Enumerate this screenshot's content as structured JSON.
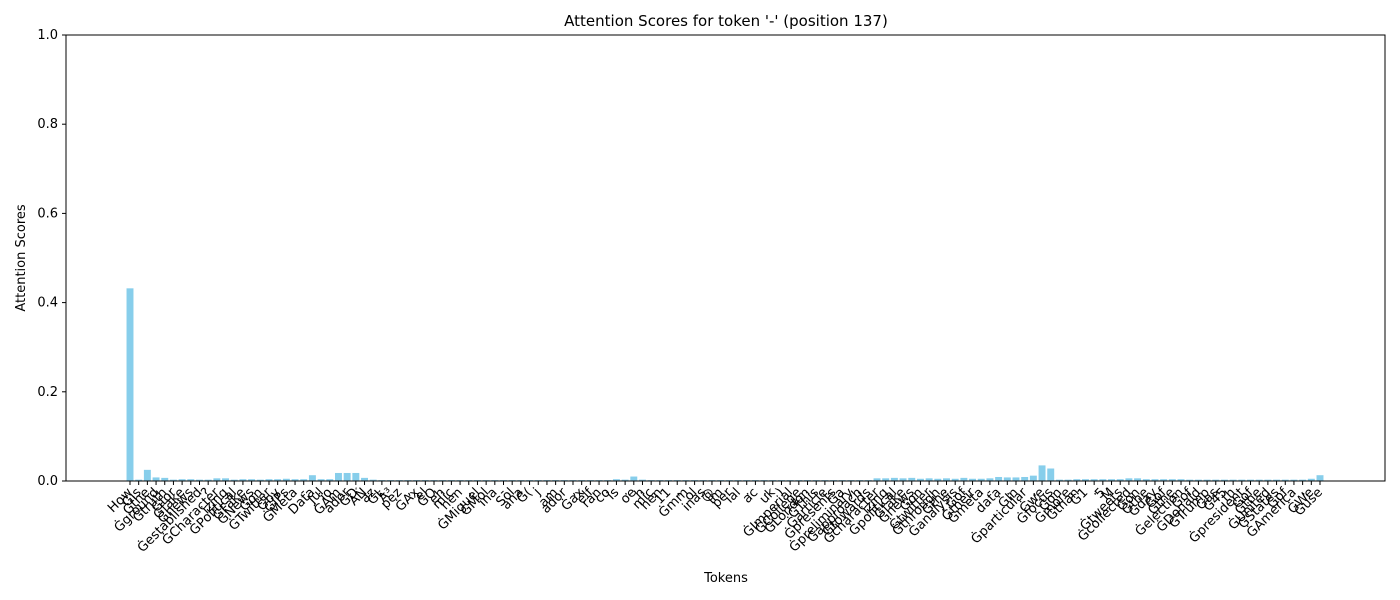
{
  "chart_data": {
    "type": "bar",
    "title": "Attention Scores for token '-' (position 137)",
    "x_label": "Tokens",
    "y_label": "Attention Scores",
    "color": "#87ceeb",
    "categories": [
      "How",
      "Ġis",
      "Ġthe",
      "Ġground",
      "Ġtruth",
      "Ġfor",
      "Ġfake",
      "Ġnews",
      "Ġestablished",
      "?",
      "ĠCharacter",
      "izing",
      "ĠPolitical",
      "ĠFake",
      "ĠNews",
      "Ġon",
      "ĠTwitter",
      "Ġby",
      "ĠIPs",
      "ĠMeta",
      "-",
      "Data",
      "Jul",
      "io",
      "ĠAm",
      "ador",
      "ĠD",
      "ÃŃ",
      "az",
      "ĠL",
      "Ã³",
      "pez",
      ",",
      "ĠAx",
      "el",
      "ĠO",
      "eh",
      "mic",
      "hen",
      ",",
      "ĠMiguel",
      "ĠMol",
      "ina",
      "-",
      "Sol",
      "ana",
      "Ġ(",
      "j",
      ".",
      "am",
      "ador",
      ",",
      "Ġax",
      "elf",
      "ran",
      "co",
      "is",
      ".",
      "oe",
      "h",
      "mic",
      "hen",
      "11",
      ",",
      "Ġmm",
      "ol",
      "inas",
      "@",
      "im",
      "per",
      "ial",
      ".",
      "ac",
      ".",
      "uk",
      ")",
      "ĠImperial",
      "ĠCollege",
      "ĠLondon",
      "ĠThis",
      "Ġarticle",
      "Ġpresents",
      "Ġa",
      "Ġpreliminary",
      "Ġapproach",
      "Ġtowards",
      "Ġcharacter",
      "izing",
      "Ġpolitical",
      "Ġfake",
      "Ġnews",
      "Ġon",
      "Ġtwitter",
      "Ġthrough",
      "Ġthe",
      "Ġanalysis",
      "Ġof",
      "Ġtheir",
      "Ġmeta",
      "-",
      "data",
      ".",
      "ĠIn",
      "Ġparticular",
      ",",
      "Ġwe",
      "Ġfocus",
      "Ġon",
      "Ġmore",
      "Ġthan",
      "Ġ1",
      ".",
      "5",
      "M",
      "Ġtweets",
      "Ġcollected",
      "Ġon",
      "Ġthe",
      "Ġday",
      "Ġof",
      "Ġthe",
      "Ġelection",
      "Ġof",
      "ĠDonald",
      "ĠTrump",
      "Ġas",
      "Ġ45",
      "th",
      "Ġpresident",
      "Ġof",
      "Ġthe",
      "ĠUnited",
      "ĠStates",
      "Ġof",
      "ĠAmerica",
      ".",
      "ĠWe",
      "Ġuse"
    ],
    "values": [
      0.432,
      0.003,
      0.025,
      0.008,
      0.007,
      0.003,
      0.004,
      0.004,
      0.003,
      0.003,
      0.006,
      0.006,
      0.003,
      0.004,
      0.004,
      0.003,
      0.004,
      0.004,
      0.005,
      0.004,
      0.004,
      0.013,
      0.004,
      0.004,
      0.018,
      0.018,
      0.018,
      0.007,
      0.003,
      0.002,
      0.002,
      0.002,
      0.002,
      0.002,
      0.002,
      0.002,
      0.002,
      0.002,
      0.002,
      0.002,
      0.002,
      0.002,
      0.002,
      0.002,
      0.002,
      0.002,
      0.002,
      0.002,
      0.002,
      0.002,
      0.002,
      0.002,
      0.002,
      0.002,
      0.002,
      0.002,
      0.004,
      0.003,
      0.01,
      0.003,
      0.002,
      0.002,
      0.002,
      0.002,
      0.002,
      0.002,
      0.002,
      0.002,
      0.002,
      0.002,
      0.002,
      0.002,
      0.002,
      0.002,
      0.002,
      0.002,
      0.002,
      0.002,
      0.002,
      0.002,
      0.002,
      0.002,
      0.002,
      0.002,
      0.002,
      0.002,
      0.006,
      0.006,
      0.007,
      0.006,
      0.007,
      0.005,
      0.006,
      0.005,
      0.006,
      0.005,
      0.007,
      0.005,
      0.005,
      0.006,
      0.009,
      0.008,
      0.008,
      0.009,
      0.012,
      0.035,
      0.028,
      0.003,
      0.003,
      0.004,
      0.004,
      0.004,
      0.004,
      0.004,
      0.004,
      0.006,
      0.006,
      0.004,
      0.004,
      0.004,
      0.004,
      0.004,
      0.003,
      0.003,
      0.003,
      0.003,
      0.003,
      0.003,
      0.003,
      0.003,
      0.003,
      0.003,
      0.003,
      0.003,
      0.003,
      0.003,
      0.005,
      0.013
    ],
    "ylim": [
      0,
      1
    ],
    "yticks": [
      {
        "value": 0,
        "label": "0.0"
      },
      {
        "value": 0.2,
        "label": "0.2"
      },
      {
        "value": 0.4,
        "label": "0.4"
      },
      {
        "value": 0.6,
        "label": "0.6"
      },
      {
        "value": 0.8,
        "label": "0.8"
      },
      {
        "value": 1,
        "label": "1.0"
      }
    ]
  }
}
